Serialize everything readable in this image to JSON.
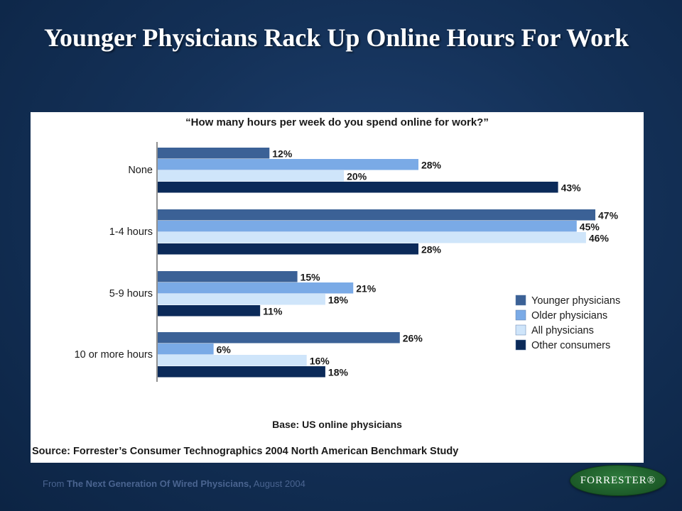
{
  "slide": {
    "title": "Younger Physicians Rack Up Online Hours For Work",
    "from_prefix": "From ",
    "from_report": "The Next Generation Of Wired Physicians,",
    "from_date": " August 2004",
    "logo_text": "FORRESTER®"
  },
  "chart_data": {
    "type": "bar",
    "orientation": "horizontal",
    "title": "“How many hours per week do you spend online for work?”",
    "categories": [
      "None",
      "1-4 hours",
      "5-9 hours",
      "10 or more hours"
    ],
    "series": [
      {
        "name": "Younger physicians",
        "values": [
          12,
          47,
          15,
          26
        ],
        "labels": [
          "12%",
          "47%",
          "15%",
          "26%"
        ],
        "color": "#3b6196"
      },
      {
        "name": "Older physicians",
        "values": [
          28,
          45,
          21,
          6
        ],
        "labels": [
          "28%",
          "45%",
          "21%",
          "6%"
        ],
        "color": "#7aaae6"
      },
      {
        "name": "All physicians",
        "values": [
          20,
          46,
          18,
          16
        ],
        "labels": [
          "20%",
          "46%",
          "18%",
          "16%"
        ],
        "color": "#cfe5fa"
      },
      {
        "name": "Other consumers",
        "values": [
          43,
          28,
          11,
          18
        ],
        "labels": [
          "43%",
          "28%",
          "11%",
          "18%"
        ],
        "color": "#0b2a59"
      }
    ],
    "xlim": [
      0,
      47
    ],
    "legend": "right",
    "base": "Base: US online physicians",
    "source": "Source: Forrester’s Consumer Technographics 2004 North American Benchmark Study"
  }
}
